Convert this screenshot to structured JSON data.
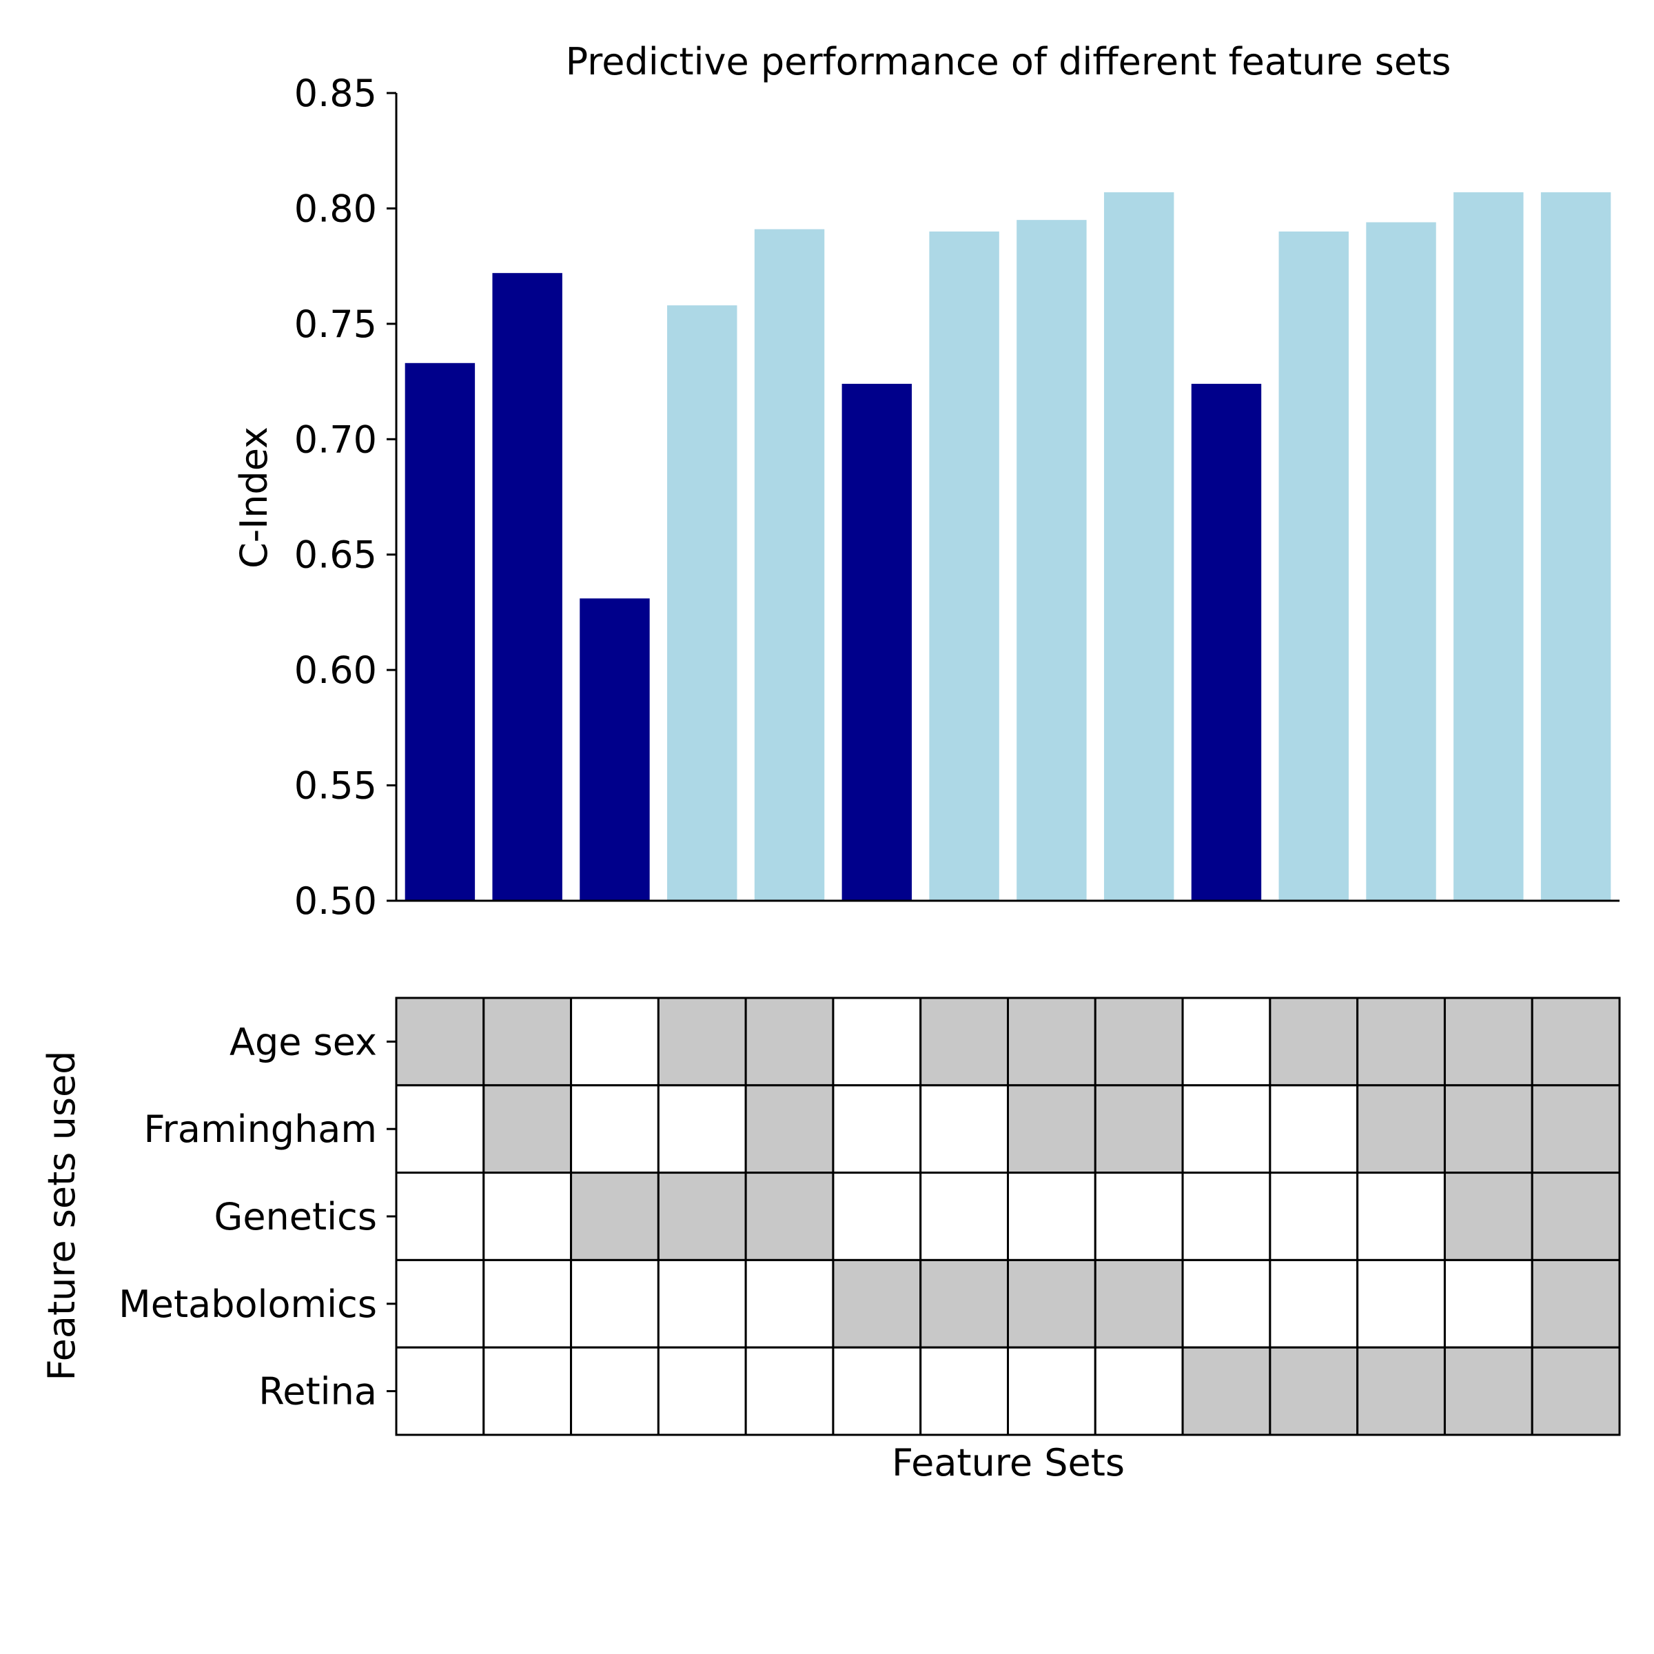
{
  "chart_data": {
    "type": "bar",
    "title": "Predictive performance of different feature sets",
    "ylabel": "C-Index",
    "xlabel": "Feature Sets",
    "ylim": [
      0.5,
      0.85
    ],
    "yticks": [
      "0.50",
      "0.55",
      "0.60",
      "0.65",
      "0.70",
      "0.75",
      "0.80",
      "0.85"
    ],
    "colors": {
      "single": "#00008b",
      "combined": "#add8e6"
    },
    "values": [
      0.733,
      0.772,
      0.631,
      0.758,
      0.791,
      0.724,
      0.79,
      0.795,
      0.807,
      0.724,
      0.79,
      0.794,
      0.807,
      0.807
    ],
    "is_single": [
      true,
      true,
      true,
      false,
      false,
      true,
      false,
      false,
      false,
      true,
      false,
      false,
      false,
      false
    ],
    "matrix": {
      "ylabel": "Feature sets used",
      "rows": [
        "Age sex",
        "Framingham",
        "Genetics",
        "Metabolomics",
        "Retina"
      ],
      "filled_color": "#c8c8c8",
      "empty_color": "#ffffff",
      "cells": [
        [
          1,
          1,
          0,
          1,
          1,
          0,
          1,
          1,
          1,
          0,
          1,
          1,
          1,
          1
        ],
        [
          0,
          1,
          0,
          0,
          1,
          0,
          0,
          1,
          1,
          0,
          0,
          1,
          1,
          1
        ],
        [
          0,
          0,
          1,
          1,
          1,
          0,
          0,
          0,
          0,
          0,
          0,
          0,
          1,
          1
        ],
        [
          0,
          0,
          0,
          0,
          0,
          1,
          1,
          1,
          1,
          0,
          0,
          0,
          0,
          1
        ],
        [
          0,
          0,
          0,
          0,
          0,
          0,
          0,
          0,
          0,
          1,
          1,
          1,
          1,
          1
        ]
      ]
    }
  }
}
